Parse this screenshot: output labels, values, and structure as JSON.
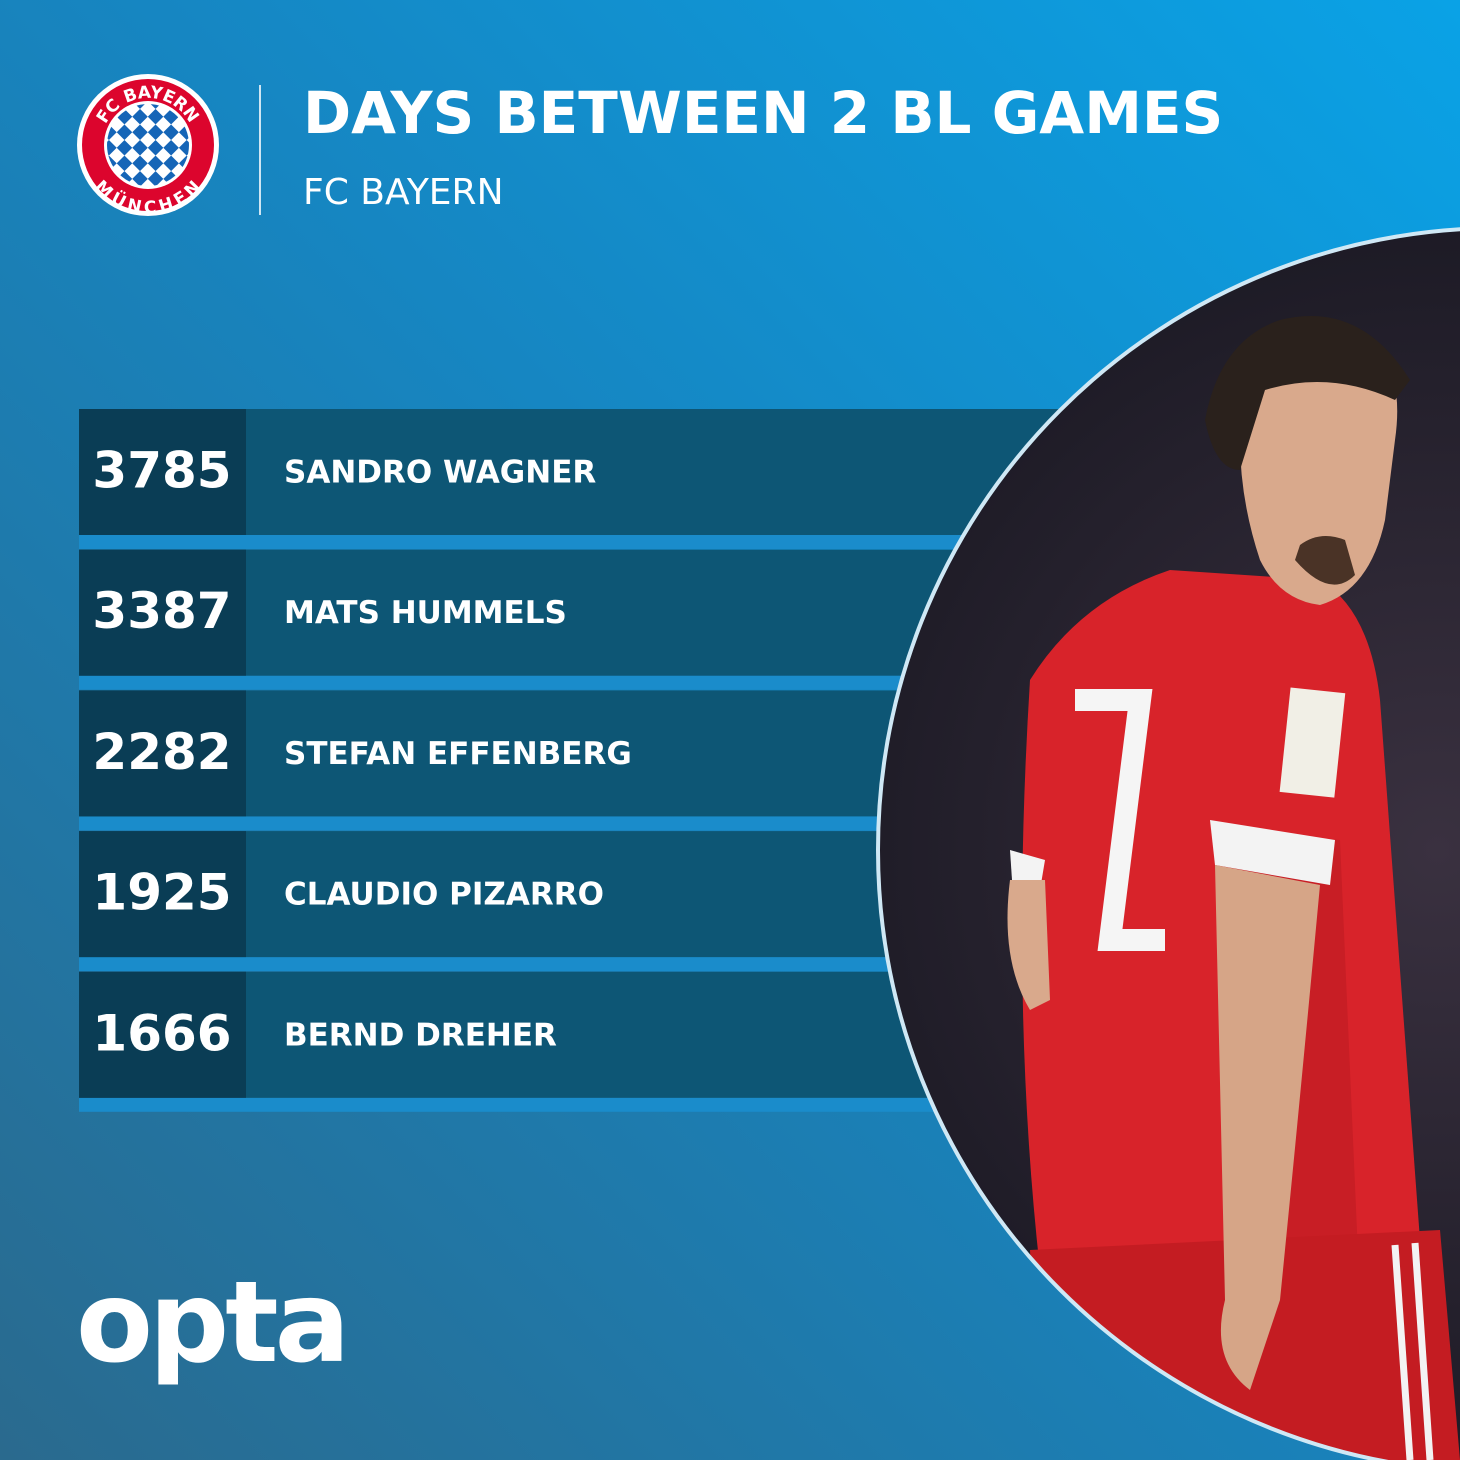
{
  "header": {
    "title": "DAYS BETWEEN 2 BL GAMES",
    "subtitle": "FC BAYERN"
  },
  "crest": {
    "top": "FC BAYERN",
    "bottom": "MÜNCHEN"
  },
  "table": {
    "rows": [
      [
        "3785",
        "SANDRO WAGNER"
      ],
      [
        "3387",
        "MATS HUMMELS"
      ],
      [
        "2282",
        "STEFAN EFFENBERG"
      ],
      [
        "1925",
        "CLAUDIO PIZARRO"
      ],
      [
        "1666",
        "BERND DREHER"
      ]
    ]
  },
  "footer": {
    "logo": "opta"
  }
}
